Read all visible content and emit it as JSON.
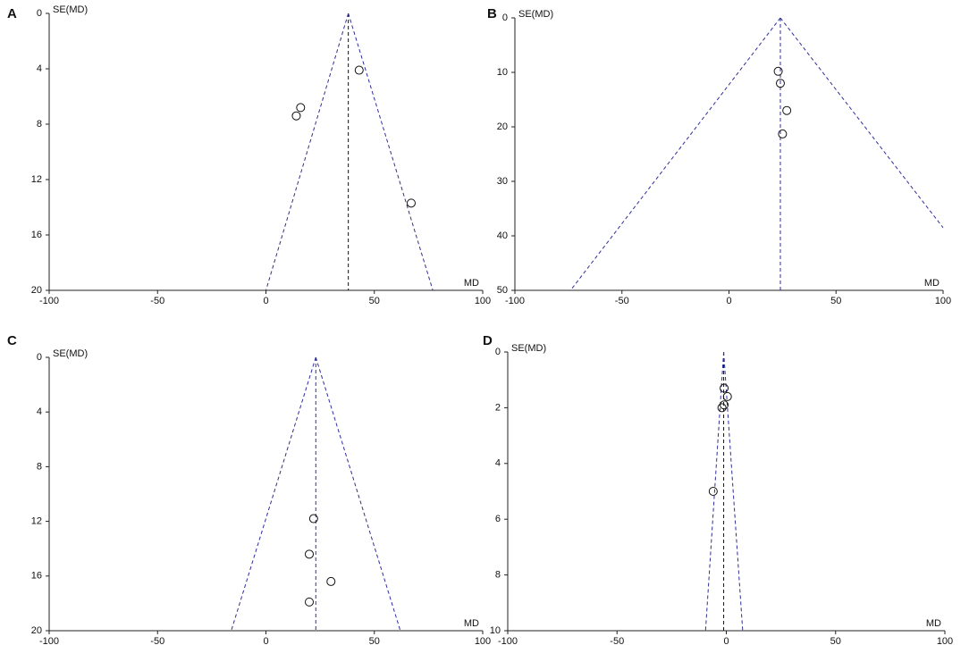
{
  "chart_data": [
    {
      "type": "funnel",
      "panel": "A",
      "xlabel": "MD",
      "ylabel": "SE(MD)",
      "xlim": [
        -100,
        100
      ],
      "xticks": [
        -100,
        -50,
        0,
        50,
        100
      ],
      "ylim": [
        0,
        20
      ],
      "yticks": [
        0,
        4,
        8,
        12,
        16,
        20
      ],
      "x": [
        43,
        16,
        14,
        67
      ],
      "values": [
        4.1,
        6.8,
        7.4,
        13.7
      ],
      "center": 38,
      "center_color": "#111111",
      "funnel_color": "#2e2e9a",
      "funnel_left": [
        [
          38,
          0
        ],
        [
          0,
          20
        ]
      ],
      "funnel_right": [
        [
          38,
          0
        ],
        [
          77,
          20
        ]
      ]
    },
    {
      "type": "funnel",
      "panel": "B",
      "xlabel": "MD",
      "ylabel": "SE(MD)",
      "xlim": [
        -100,
        100
      ],
      "xticks": [
        -100,
        -50,
        0,
        50,
        100
      ],
      "ylim": [
        0,
        50
      ],
      "yticks": [
        0,
        10,
        20,
        30,
        40,
        50
      ],
      "x": [
        23,
        24,
        27,
        25
      ],
      "values": [
        9.8,
        12,
        17,
        21.3
      ],
      "center": 24,
      "center_color": "#2e2e9a",
      "funnel_color": "#2e2e9a",
      "funnel_left": [
        [
          24,
          0
        ],
        [
          -74,
          50
        ]
      ],
      "funnel_right": [
        [
          24,
          0
        ],
        [
          100,
          38.5
        ]
      ]
    },
    {
      "type": "funnel",
      "panel": "C",
      "xlabel": "MD",
      "ylabel": "SE(MD)",
      "xlim": [
        -100,
        100
      ],
      "xticks": [
        -100,
        -50,
        0,
        50,
        100
      ],
      "ylim": [
        0,
        20
      ],
      "yticks": [
        0,
        4,
        8,
        12,
        16,
        20
      ],
      "x": [
        22,
        20,
        30,
        20
      ],
      "values": [
        11.8,
        14.4,
        16.4,
        17.9
      ],
      "center": 23,
      "center_color": "#2e2e9a",
      "funnel_color": "#2e2e9a",
      "funnel_left": [
        [
          23,
          0
        ],
        [
          -16,
          20
        ]
      ],
      "funnel_right": [
        [
          23,
          0
        ],
        [
          62,
          20
        ]
      ]
    },
    {
      "type": "funnel",
      "panel": "D",
      "xlabel": "MD",
      "ylabel": "SE(MD)",
      "xlim": [
        -100,
        100
      ],
      "xticks": [
        -100,
        -50,
        0,
        50,
        100
      ],
      "ylim": [
        0,
        10
      ],
      "yticks": [
        0,
        2,
        4,
        6,
        8,
        10
      ],
      "x": [
        -1,
        0.5,
        -1,
        -2,
        -6
      ],
      "values": [
        1.3,
        1.6,
        1.9,
        2,
        5
      ],
      "center": -1.2,
      "center_color": "#111111",
      "funnel_color": "#2e2e9a",
      "funnel_left": [
        [
          -1.2,
          0
        ],
        [
          -9.5,
          10
        ]
      ],
      "funnel_right": [
        [
          -1.2,
          0
        ],
        [
          7.5,
          10
        ]
      ]
    }
  ]
}
